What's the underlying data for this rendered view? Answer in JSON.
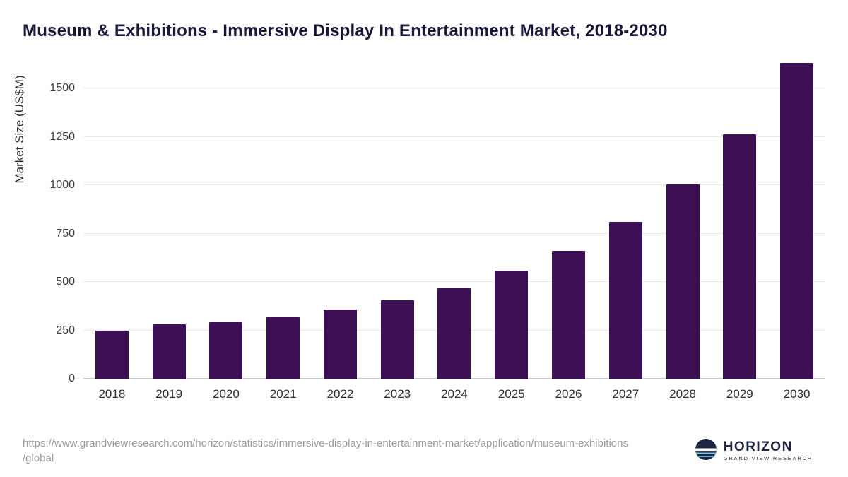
{
  "title": "Museum & Exhibitions - Immersive Display In Entertainment Market, 2018-2030",
  "chart_data": {
    "type": "bar",
    "categories": [
      "2018",
      "2019",
      "2020",
      "2021",
      "2022",
      "2023",
      "2024",
      "2025",
      "2026",
      "2027",
      "2028",
      "2029",
      "2030"
    ],
    "values": [
      250,
      282,
      291,
      320,
      356,
      406,
      469,
      557,
      662,
      810,
      1003,
      1264,
      1630
    ],
    "title": "Museum & Exhibitions - Immersive Display In Entertainment Market, 2018-2030",
    "xlabel": "",
    "ylabel": "Market Size (US$M)",
    "ylim": [
      0,
      1650
    ],
    "yticks": [
      0,
      250,
      500,
      750,
      1000,
      1250,
      1500
    ],
    "bar_color": "#3d1056",
    "grid": true,
    "legend": "none"
  },
  "footer": {
    "source_url": "https://www.grandviewresearch.com/horizon/statistics/immersive-display-in-entertainment-market/application/museum-exhibitions\n/global",
    "logo_title": "HORIZON",
    "logo_subtitle": "GRAND VIEW RESEARCH"
  },
  "colors": {
    "bar": "#3d1056",
    "title_text": "#17173a",
    "axis_text": "#2e2e2e",
    "gridline": "#e8e8e8",
    "source_text": "#9b9b9b",
    "logo_navy": "#1d2642"
  }
}
